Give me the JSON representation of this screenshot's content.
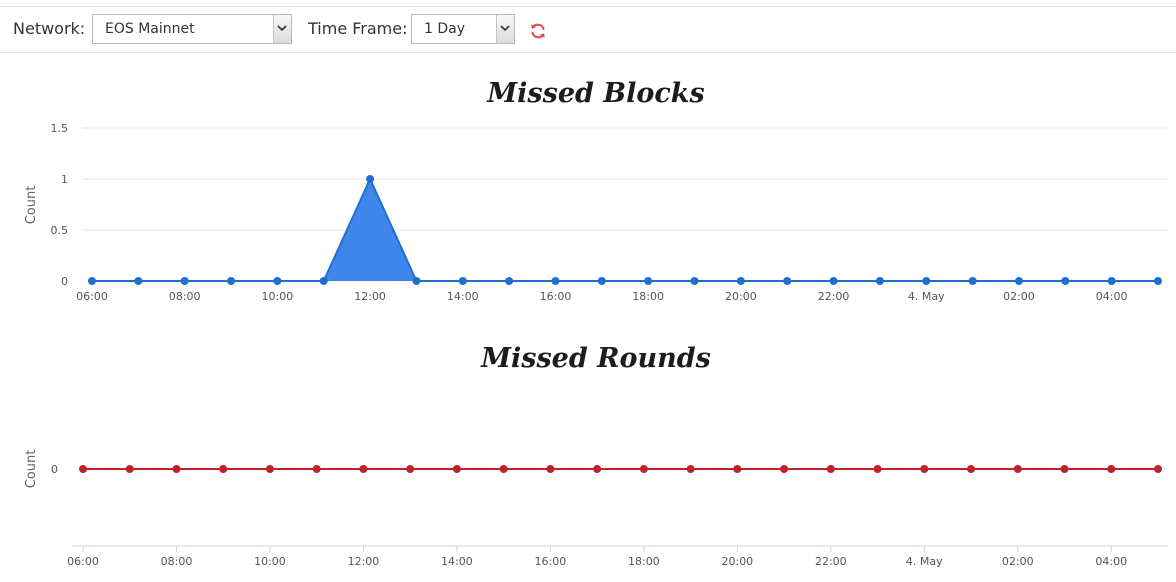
{
  "toolbar": {
    "network_label": "Network:",
    "network_value": "EOS Mainnet",
    "timeframe_label": "Time Frame:",
    "timeframe_value": "1 Day",
    "refresh_icon": "refresh-icon",
    "refresh_color": "#e8414a"
  },
  "chart_data": [
    {
      "type": "area",
      "title": "Missed Blocks",
      "ylabel": "Count",
      "xlabel": "",
      "y_ticks": [
        0,
        0.5,
        1,
        1.5
      ],
      "ylim": [
        0,
        1.5
      ],
      "x_tick_labels": [
        "06:00",
        "08:00",
        "10:00",
        "12:00",
        "14:00",
        "16:00",
        "18:00",
        "20:00",
        "22:00",
        "4. May",
        "02:00",
        "04:00"
      ],
      "x": [
        "06:00",
        "07:00",
        "08:00",
        "09:00",
        "10:00",
        "11:00",
        "12:00",
        "13:00",
        "14:00",
        "15:00",
        "16:00",
        "17:00",
        "18:00",
        "19:00",
        "20:00",
        "21:00",
        "22:00",
        "23:00",
        "00:00",
        "01:00",
        "02:00",
        "03:00",
        "04:00",
        "05:00"
      ],
      "series": [
        {
          "values": [
            0,
            0,
            0,
            0,
            0,
            0,
            1,
            0,
            0,
            0,
            0,
            0,
            0,
            0,
            0,
            0,
            0,
            0,
            0,
            0,
            0,
            0,
            0,
            0
          ]
        }
      ],
      "colors": {
        "line": "#1f6fd1",
        "fill": "#3f86ea",
        "marker": "#1f6fd1"
      },
      "grid": true
    },
    {
      "type": "line",
      "title": "Missed Rounds",
      "ylabel": "Count",
      "xlabel": "",
      "y_ticks": [
        0
      ],
      "x_tick_labels": [
        "06:00",
        "08:00",
        "10:00",
        "12:00",
        "14:00",
        "16:00",
        "18:00",
        "20:00",
        "22:00",
        "4. May",
        "02:00",
        "04:00"
      ],
      "x": [
        "06:00",
        "07:00",
        "08:00",
        "09:00",
        "10:00",
        "11:00",
        "12:00",
        "13:00",
        "14:00",
        "15:00",
        "16:00",
        "17:00",
        "18:00",
        "19:00",
        "20:00",
        "21:00",
        "22:00",
        "23:00",
        "00:00",
        "01:00",
        "02:00",
        "03:00",
        "04:00",
        "05:00"
      ],
      "series": [
        {
          "values": [
            0,
            0,
            0,
            0,
            0,
            0,
            0,
            0,
            0,
            0,
            0,
            0,
            0,
            0,
            0,
            0,
            0,
            0,
            0,
            0,
            0,
            0,
            0,
            0
          ]
        }
      ],
      "colors": {
        "line": "#c0222c",
        "marker": "#c0222c"
      },
      "grid": false
    }
  ]
}
